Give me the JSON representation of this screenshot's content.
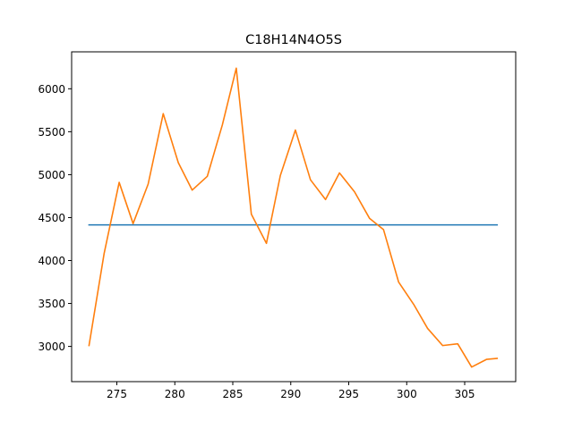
{
  "chart_data": {
    "type": "line",
    "title": "C18H14N4O5S",
    "xlabel": "",
    "ylabel": "",
    "xlim": [
      271.1,
      309.4
    ],
    "ylim": [
      2590,
      6430
    ],
    "grid": false,
    "xticks": [
      275,
      280,
      285,
      290,
      295,
      300,
      305
    ],
    "yticks": [
      3000,
      3500,
      4000,
      4500,
      5000,
      5500,
      6000
    ],
    "series": [
      {
        "color": "#1f77b4",
        "x": [
          272.6,
          307.8
        ],
        "y": [
          4415,
          4415
        ]
      },
      {
        "color": "#ff7f0e",
        "x": [
          272.6,
          273.9,
          275.2,
          276.4,
          277.7,
          279.0,
          280.3,
          281.5,
          282.8,
          284.1,
          285.3,
          286.6,
          287.9,
          289.1,
          290.4,
          291.7,
          293.0,
          294.2,
          295.5,
          296.8,
          298.0,
          299.3,
          300.6,
          301.8,
          303.1,
          304.4,
          305.6,
          306.9,
          307.8
        ],
        "y": [
          3010,
          4080,
          4910,
          4430,
          4890,
          5710,
          5140,
          4820,
          4980,
          5580,
          6240,
          4540,
          4200,
          4990,
          5520,
          4940,
          4710,
          5020,
          4800,
          4490,
          4360,
          3750,
          3490,
          3210,
          3010,
          3030,
          2760,
          2850,
          2860
        ]
      }
    ]
  }
}
